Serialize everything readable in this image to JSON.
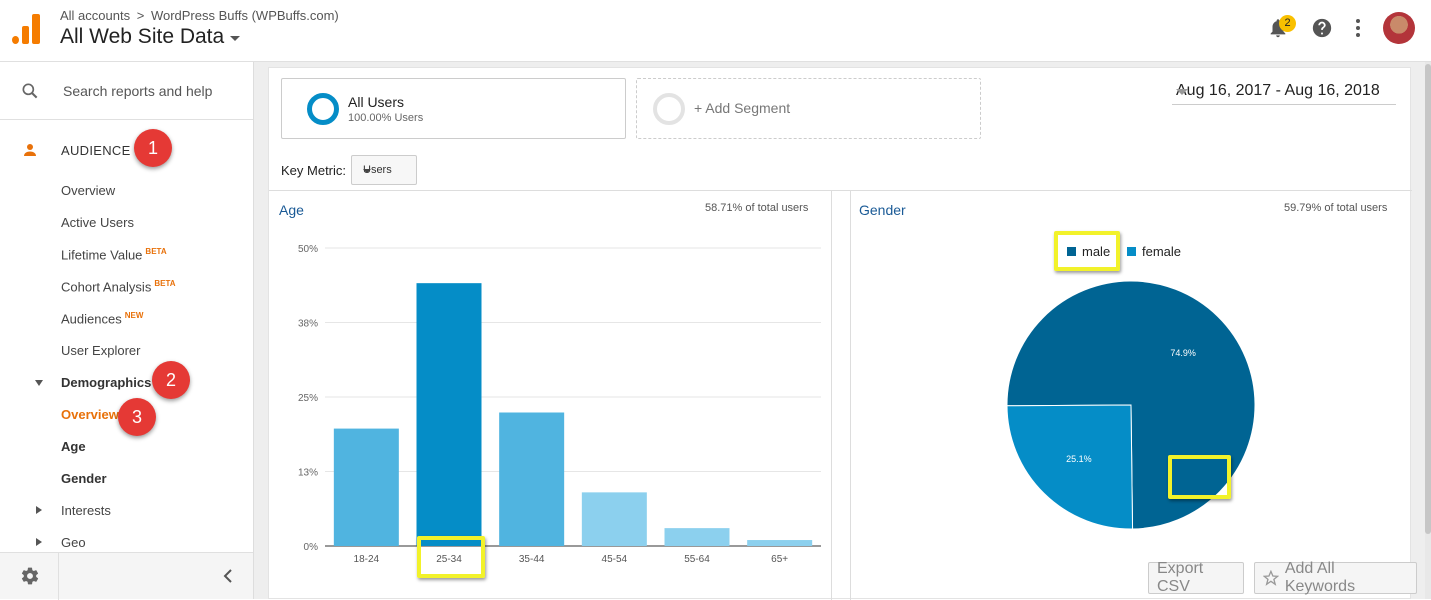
{
  "header": {
    "breadcrumb": [
      "All accounts",
      "WordPress Buffs (WPBuffs.com)"
    ],
    "breadcrumb_sep": ">",
    "property_view": "All Web Site Data",
    "notification_count": "2"
  },
  "sidebar": {
    "search_placeholder": "Search reports and help",
    "section_label": "AUDIENCE",
    "items": [
      {
        "label": "Overview"
      },
      {
        "label": "Active Users"
      },
      {
        "label": "Lifetime Value",
        "badge": "BETA"
      },
      {
        "label": "Cohort Analysis",
        "badge": "BETA"
      },
      {
        "label": "Audiences",
        "badge": "NEW"
      },
      {
        "label": "User Explorer"
      },
      {
        "label": "Demographics"
      },
      {
        "label": "Overview"
      },
      {
        "label": "Age"
      },
      {
        "label": "Gender"
      },
      {
        "label": "Interests"
      },
      {
        "label": "Geo"
      }
    ],
    "callouts": [
      "1",
      "2",
      "3"
    ]
  },
  "segments": {
    "all_users_title": "All Users",
    "all_users_sub": "100.00% Users",
    "add_segment": "+ Add Segment"
  },
  "date_range": "Aug 16, 2017 - Aug 16, 2018",
  "key_metric": {
    "label": "Key Metric:",
    "value": "Users"
  },
  "age_card": {
    "title": "Age",
    "subtitle": "58.71% of total users"
  },
  "gender_card": {
    "title": "Gender",
    "subtitle": "59.79% of total users"
  },
  "buttons": {
    "export": "Export CSV",
    "add_keywords": "Add All Keywords"
  },
  "colors": {
    "accent_orange": "#e8710a",
    "bar_dark": "#058dc7",
    "bar_mid": "#50b4e0",
    "bar_light": "#8cd0ee",
    "pie_male": "#006493",
    "pie_female": "#058dc7",
    "highlight_yellow": "#f2f22a",
    "callout_red": "#e53935"
  },
  "chart_data": [
    {
      "type": "bar",
      "title": "Age",
      "categories": [
        "18-24",
        "25-34",
        "35-44",
        "45-54",
        "55-64",
        "65+"
      ],
      "values": [
        19.7,
        44.1,
        22.4,
        9.0,
        3.0,
        1.0
      ],
      "yticks": [
        "50%",
        "38%",
        "25%",
        "13%",
        "0%"
      ],
      "ylim": [
        0,
        50
      ],
      "highlighted_category": "25-34"
    },
    {
      "type": "pie",
      "title": "Gender",
      "labels": [
        "male",
        "female"
      ],
      "values": [
        74.9,
        25.1
      ],
      "value_labels": [
        "74.9%",
        "25.1%"
      ],
      "legend": "top"
    }
  ]
}
